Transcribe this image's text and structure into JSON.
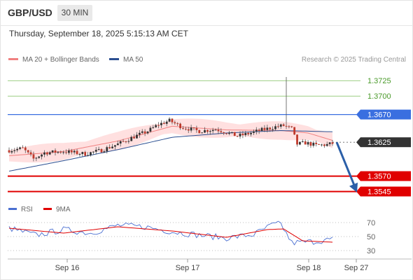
{
  "header": {
    "symbol": "GBP/USD",
    "timeframe": "30 MIN",
    "datetime": "Thursday, September 18, 2025 5:15:13 AM CET"
  },
  "legend": {
    "ma": {
      "label": "MA 20 + Bollinger Bands",
      "color": "#f08080"
    },
    "ma50": {
      "label": "MA 50",
      "color": "#2b4f91"
    },
    "rsi": {
      "label": "RSI",
      "color": "#4a6fd1"
    },
    "ma9": {
      "label": "9MA",
      "color": "#e00000"
    }
  },
  "credit": "Research © 2025 Trading Central",
  "colors": {
    "resistance": "#7cbf5a",
    "pivot": "#3a6fe0",
    "support": "#e00000",
    "current": "#333333",
    "bull": "#333333",
    "bear": "#c0392b",
    "arrow": "#2b5fa8",
    "band": "#ffd6d6"
  },
  "chart_data": {
    "type": "candlestick",
    "y_range": [
      1.3532,
      1.3748
    ],
    "x_ticks": [
      "Sep 16",
      "Sep 17",
      "Sep 18",
      "Sep 27"
    ],
    "levels": [
      {
        "label": "1.3725",
        "value": 1.3725,
        "kind": "resistance"
      },
      {
        "label": "1.3700",
        "value": 1.37,
        "kind": "resistance"
      },
      {
        "label": "1.3670",
        "value": 1.367,
        "kind": "pivot"
      },
      {
        "label": "1.3625",
        "value": 1.3625,
        "kind": "current"
      },
      {
        "label": "1.3570",
        "value": 1.357,
        "kind": "support"
      },
      {
        "label": "1.3545",
        "value": 1.3545,
        "kind": "support"
      }
    ],
    "close_anchors": [
      [
        0,
        1.3612
      ],
      [
        5,
        1.3615
      ],
      [
        9,
        1.3598
      ],
      [
        13,
        1.3608
      ],
      [
        20,
        1.361
      ],
      [
        28,
        1.3606
      ],
      [
        34,
        1.3612
      ],
      [
        40,
        1.3622
      ],
      [
        46,
        1.3634
      ],
      [
        51,
        1.3643
      ],
      [
        55,
        1.3654
      ],
      [
        59,
        1.366
      ],
      [
        64,
        1.3649
      ],
      [
        70,
        1.3643
      ],
      [
        76,
        1.3646
      ],
      [
        80,
        1.3641
      ],
      [
        84,
        1.3635
      ],
      [
        88,
        1.3639
      ],
      [
        93,
        1.3645
      ],
      [
        98,
        1.365
      ],
      [
        101,
        1.3652
      ],
      [
        104,
        1.3647
      ],
      [
        106,
        1.3622
      ],
      [
        109,
        1.3624
      ],
      [
        113,
        1.362
      ],
      [
        117,
        1.3621
      ],
      [
        119,
        1.3623
      ]
    ],
    "ma20_anchors": [
      [
        0,
        1.3603
      ],
      [
        20,
        1.361
      ],
      [
        40,
        1.3627
      ],
      [
        60,
        1.3651
      ],
      [
        80,
        1.3645
      ],
      [
        100,
        1.3644
      ],
      [
        110,
        1.364
      ],
      [
        119,
        1.3628
      ]
    ],
    "ma50_anchors": [
      [
        0,
        1.3578
      ],
      [
        20,
        1.3595
      ],
      [
        40,
        1.3613
      ],
      [
        60,
        1.3633
      ],
      [
        80,
        1.364
      ],
      [
        100,
        1.3644
      ],
      [
        119,
        1.3642
      ]
    ],
    "band_halfwidth": 0.0012,
    "spike": {
      "index": 102,
      "high": 1.3731
    },
    "forecast": {
      "from": 1.3625,
      "to": 1.3548
    },
    "rsi": {
      "y_range": [
        25,
        75
      ],
      "ticks": [
        70,
        50,
        30
      ],
      "anchors": [
        [
          0,
          62
        ],
        [
          10,
          52
        ],
        [
          20,
          60
        ],
        [
          30,
          55
        ],
        [
          40,
          66
        ],
        [
          50,
          64
        ],
        [
          60,
          57
        ],
        [
          70,
          52
        ],
        [
          80,
          48
        ],
        [
          90,
          53
        ],
        [
          97,
          67
        ],
        [
          100,
          68
        ],
        [
          104,
          41
        ],
        [
          112,
          43
        ],
        [
          119,
          46
        ]
      ],
      "ma9_anchors": [
        [
          0,
          62
        ],
        [
          20,
          55
        ],
        [
          40,
          64
        ],
        [
          60,
          58
        ],
        [
          80,
          49
        ],
        [
          95,
          60
        ],
        [
          101,
          61
        ],
        [
          108,
          44
        ],
        [
          119,
          42
        ]
      ]
    }
  }
}
